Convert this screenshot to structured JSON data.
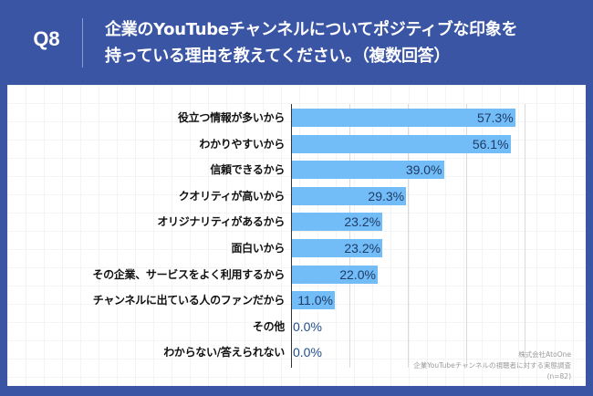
{
  "header": {
    "question_number": "Q8",
    "title_line1": "企業のYouTubeチャンネルについてポジティブな印象を",
    "title_line2": "持っている理由を教えてください。（複数回答）"
  },
  "colors": {
    "background": "#3A55A4",
    "bar": "#72BDF8",
    "value_text": "#1F3B66",
    "panel": "#FFFFFF"
  },
  "source": {
    "company": "株式会社AtoOne",
    "survey": "企業YouTubeチャンネルの視聴者に対する実態調査",
    "sample": "(n=82)"
  },
  "chart_data": {
    "type": "bar",
    "orientation": "horizontal",
    "title": "企業のYouTubeチャンネルについてポジティブな印象を持っている理由を教えてください。（複数回答）",
    "xlabel": "",
    "ylabel": "",
    "unit": "%",
    "xlim": [
      0,
      75
    ],
    "gridlines_at": [
      15,
      30,
      45,
      60
    ],
    "grid": true,
    "legend": "none",
    "categories": [
      "役立つ情報が多いから",
      "わかりやすいから",
      "信頼できるから",
      "クオリティが高いから",
      "オリジナリティがあるから",
      "面白いから",
      "その企業、サービスをよく利用するから",
      "チャンネルに出ている人のファンだから",
      "その他",
      "わからない/答えられない"
    ],
    "values": [
      57.3,
      56.1,
      39.0,
      29.3,
      23.2,
      23.2,
      22.0,
      11.0,
      0.0,
      0.0
    ],
    "value_labels": [
      "57.3%",
      "56.1%",
      "39.0%",
      "29.3%",
      "23.2%",
      "23.2%",
      "22.0%",
      "11.0%",
      "0.0%",
      "0.0%"
    ],
    "n": 82
  }
}
